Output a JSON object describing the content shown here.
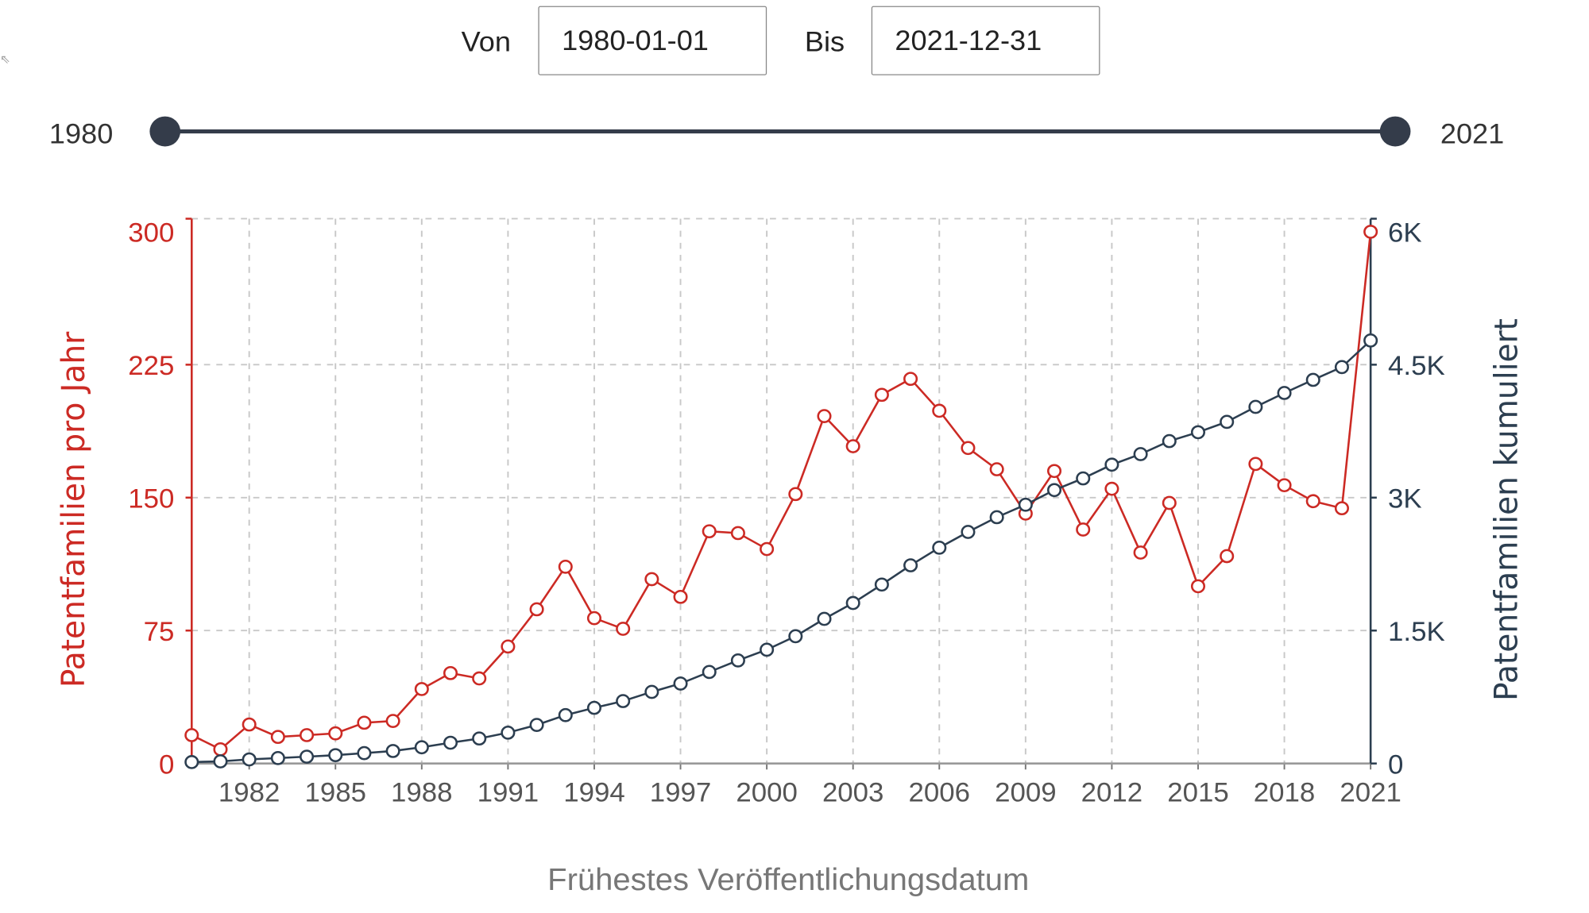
{
  "filters": {
    "from_label": "Von",
    "from_value": "1980-01-01",
    "to_label": "Bis",
    "to_value": "2021-12-31"
  },
  "slider": {
    "min_label": "1980",
    "max_label": "2021",
    "range": [
      1980,
      2021
    ],
    "selected": [
      1980,
      2021
    ]
  },
  "colors": {
    "annual": "#cc2a24",
    "cumulative": "#2c3e50",
    "grid": "#c8c8c8"
  },
  "chart_data": {
    "type": "line",
    "xlabel": "Frühestes Veröffentlichungsdatum",
    "ylabel": "Patentfamilien pro Jahr",
    "y2label": "Patentfamilien kumuliert",
    "x": [
      1980,
      1981,
      1982,
      1983,
      1984,
      1985,
      1986,
      1987,
      1988,
      1989,
      1990,
      1991,
      1992,
      1993,
      1994,
      1995,
      1996,
      1997,
      1998,
      1999,
      2000,
      2001,
      2002,
      2003,
      2004,
      2005,
      2006,
      2007,
      2008,
      2009,
      2010,
      2011,
      2012,
      2013,
      2014,
      2015,
      2016,
      2017,
      2018,
      2019,
      2020,
      2021
    ],
    "xlim": [
      1980,
      2021
    ],
    "xticks": [
      "1982",
      "1985",
      "1988",
      "1991",
      "1994",
      "1997",
      "2000",
      "2003",
      "2006",
      "2009",
      "2012",
      "2015",
      "2018",
      "2021"
    ],
    "ylim": [
      0,
      300
    ],
    "yticks": [
      "0",
      "75",
      "150",
      "225",
      "300"
    ],
    "y2lim": [
      0,
      6000
    ],
    "y2ticks": [
      "0",
      "1.5K",
      "3K",
      "4.5K",
      "6K"
    ],
    "grid": true,
    "series": [
      {
        "name": "Patentfamilien pro Jahr",
        "axis": "left",
        "values": [
          16,
          8,
          22,
          15,
          16,
          17,
          23,
          24,
          42,
          51,
          48,
          66,
          87,
          111,
          82,
          76,
          104,
          94,
          131,
          130,
          121,
          152,
          196,
          179,
          208,
          217,
          199,
          178,
          166,
          141,
          165,
          132,
          155,
          119,
          147,
          100,
          117,
          169,
          157,
          148,
          144,
          300
        ]
      },
      {
        "name": "Patentfamilien kumuliert",
        "axis": "right",
        "values": [
          16,
          24,
          46,
          61,
          77,
          94,
          117,
          141,
          183,
          234,
          282,
          348,
          435,
          546,
          628,
          704,
          808,
          902,
          1033,
          1163,
          1284,
          1436,
          1632,
          1811,
          2019,
          2236,
          2435,
          2613,
          2779,
          2920,
          3085,
          3217,
          3372,
          3491,
          3638,
          3738,
          3855,
          4024,
          4181,
          4329,
          4473,
          4773
        ]
      }
    ]
  }
}
